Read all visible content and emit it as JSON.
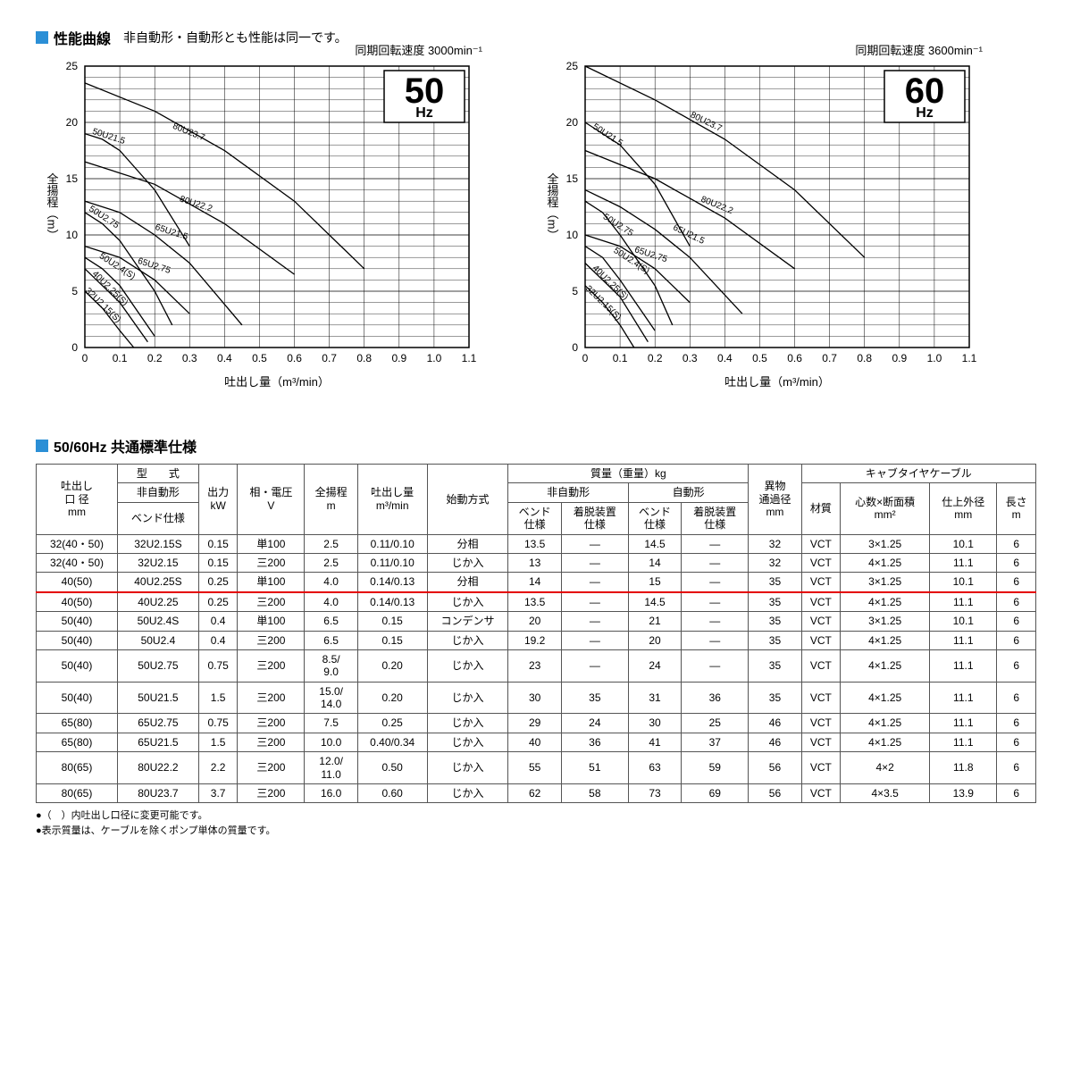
{
  "section1": {
    "title": "性能曲線",
    "subtitle": "非自動形・自動形とも性能は同一です。"
  },
  "charts": {
    "y_label": "全揚程（m）",
    "x_label": "吐出し量（m³/min）",
    "x_ticks": [
      "0",
      "0.1",
      "0.2",
      "0.3",
      "0.4",
      "0.5",
      "0.6",
      "0.7",
      "0.8",
      "0.9",
      "1.0",
      "1.1"
    ],
    "y_ticks": [
      "0",
      "5",
      "10",
      "15",
      "20",
      "25"
    ],
    "xlim": [
      0,
      1.1
    ],
    "ylim": [
      0,
      25
    ],
    "font_family": "sans-serif",
    "grid_color": "#000",
    "line_color": "#000",
    "left": {
      "top_label": "同期回転速度 3000min⁻¹",
      "badge_big": "50",
      "badge_small": "Hz",
      "curves": [
        {
          "label": "50U21.5",
          "pts": [
            [
              0,
              19
            ],
            [
              0.05,
              18.5
            ],
            [
              0.1,
              17.5
            ],
            [
              0.2,
              14
            ],
            [
              0.3,
              9
            ]
          ],
          "lx": 0.02,
          "ly": 19
        },
        {
          "label": "80U23.7",
          "pts": [
            [
              0,
              23.5
            ],
            [
              0.2,
              21
            ],
            [
              0.4,
              17.5
            ],
            [
              0.6,
              13
            ],
            [
              0.8,
              7
            ]
          ],
          "lx": 0.25,
          "ly": 19.5
        },
        {
          "label": "80U22.2",
          "pts": [
            [
              0,
              16.5
            ],
            [
              0.2,
              14.5
            ],
            [
              0.4,
              11
            ],
            [
              0.6,
              6.5
            ]
          ],
          "lx": 0.27,
          "ly": 13
        },
        {
          "label": "65U21.5",
          "pts": [
            [
              0,
              13
            ],
            [
              0.1,
              12
            ],
            [
              0.2,
              10
            ],
            [
              0.3,
              7.5
            ],
            [
              0.45,
              2
            ]
          ],
          "lx": 0.2,
          "ly": 10.5
        },
        {
          "label": "50U2.75",
          "pts": [
            [
              0,
              12
            ],
            [
              0.05,
              11
            ],
            [
              0.1,
              9.5
            ],
            [
              0.2,
              5
            ],
            [
              0.25,
              2
            ]
          ],
          "lx": 0.01,
          "ly": 12.2
        },
        {
          "label": "65U2.75",
          "pts": [
            [
              0,
              9
            ],
            [
              0.1,
              8
            ],
            [
              0.2,
              6
            ],
            [
              0.3,
              3
            ]
          ],
          "lx": 0.15,
          "ly": 7.5
        },
        {
          "label": "50U2.4(S)",
          "pts": [
            [
              0,
              8
            ],
            [
              0.05,
              7
            ],
            [
              0.1,
              5.5
            ],
            [
              0.2,
              1
            ]
          ],
          "lx": 0.04,
          "ly": 8
        },
        {
          "label": "40U2.25(S)",
          "pts": [
            [
              0,
              7
            ],
            [
              0.05,
              5.5
            ],
            [
              0.1,
              4
            ],
            [
              0.18,
              0.5
            ]
          ],
          "lx": 0.02,
          "ly": 6.5
        },
        {
          "label": "32U2.15(S)",
          "pts": [
            [
              0,
              5
            ],
            [
              0.05,
              3.5
            ],
            [
              0.1,
              1.5
            ],
            [
              0.14,
              0
            ]
          ],
          "lx": 0.0,
          "ly": 5
        }
      ]
    },
    "right": {
      "top_label": "同期回転速度 3600min⁻¹",
      "badge_big": "60",
      "badge_small": "Hz",
      "curves": [
        {
          "label": "50U21.5",
          "pts": [
            [
              0,
              20
            ],
            [
              0.1,
              18
            ],
            [
              0.2,
              14.5
            ],
            [
              0.3,
              9
            ]
          ],
          "lx": 0.02,
          "ly": 19.5
        },
        {
          "label": "80U23.7",
          "pts": [
            [
              0,
              25
            ],
            [
              0.2,
              22
            ],
            [
              0.4,
              18.5
            ],
            [
              0.6,
              14
            ],
            [
              0.8,
              8
            ]
          ],
          "lx": 0.3,
          "ly": 20.5
        },
        {
          "label": "80U22.2",
          "pts": [
            [
              0,
              17.5
            ],
            [
              0.2,
              15
            ],
            [
              0.4,
              11.5
            ],
            [
              0.6,
              7
            ]
          ],
          "lx": 0.33,
          "ly": 13
        },
        {
          "label": "65U21.5",
          "pts": [
            [
              0,
              14
            ],
            [
              0.1,
              12.5
            ],
            [
              0.2,
              10.5
            ],
            [
              0.3,
              8
            ],
            [
              0.45,
              3
            ]
          ],
          "lx": 0.25,
          "ly": 10.5
        },
        {
          "label": "50U2.75",
          "pts": [
            [
              0,
              13
            ],
            [
              0.05,
              12
            ],
            [
              0.1,
              10
            ],
            [
              0.2,
              5.5
            ],
            [
              0.25,
              2
            ]
          ],
          "lx": 0.05,
          "ly": 11.5
        },
        {
          "label": "65U2.75",
          "pts": [
            [
              0,
              10
            ],
            [
              0.1,
              9
            ],
            [
              0.2,
              7
            ],
            [
              0.3,
              4
            ]
          ],
          "lx": 0.14,
          "ly": 8.5
        },
        {
          "label": "50U2.4(S)",
          "pts": [
            [
              0,
              9
            ],
            [
              0.05,
              8
            ],
            [
              0.1,
              6
            ],
            [
              0.2,
              1.5
            ]
          ],
          "lx": 0.08,
          "ly": 8.5
        },
        {
          "label": "40U2.25(S)",
          "pts": [
            [
              0,
              7.5
            ],
            [
              0.05,
              6
            ],
            [
              0.1,
              4.5
            ],
            [
              0.18,
              0.5
            ]
          ],
          "lx": 0.02,
          "ly": 7
        },
        {
          "label": "32U2.15(S)",
          "pts": [
            [
              0,
              5.5
            ],
            [
              0.05,
              4
            ],
            [
              0.1,
              2
            ],
            [
              0.14,
              0
            ]
          ],
          "lx": 0.0,
          "ly": 5.2
        }
      ]
    }
  },
  "section2": {
    "title": "50/60Hz 共通標準仕様"
  },
  "table": {
    "headers": {
      "diameter": "吐出し\n口 径\nmm",
      "model": "型　　式",
      "model_nonauto": "非自動形",
      "model_bend": "ベンド仕様",
      "power": "出力\nkW",
      "phase": "相・電圧\nV",
      "head": "全揚程\nm",
      "discharge": "吐出し量\nm³/min",
      "start": "始動方式",
      "mass": "質量（重量）kg",
      "mass_nonauto": "非自動形",
      "mass_auto": "自動形",
      "mass_bend": "ベンド\n仕様",
      "mass_lift": "着脱装置\n仕様",
      "foreign": "異物\n通過径\nmm",
      "cable": "キャブタイヤケーブル",
      "cable_mat": "材質",
      "cable_core": "心数×断面積\nmm²",
      "cable_od": "仕上外径\nmm",
      "cable_len": "長さ\nm"
    },
    "rows": [
      {
        "d": "32(40・50)",
        "m": "32U2.15S",
        "kw": "0.15",
        "pv": "単100",
        "h": "2.5",
        "q": "0.11/0.10",
        "st": "分相",
        "na1": "13.5",
        "na2": "—",
        "a1": "14.5",
        "a2": "—",
        "f": "32",
        "cm": "VCT",
        "cc": "3×1.25",
        "co": "10.1",
        "cl": "6",
        "red": false
      },
      {
        "d": "32(40・50)",
        "m": "32U2.15",
        "kw": "0.15",
        "pv": "三200",
        "h": "2.5",
        "q": "0.11/0.10",
        "st": "じか入",
        "na1": "13",
        "na2": "—",
        "a1": "14",
        "a2": "—",
        "f": "32",
        "cm": "VCT",
        "cc": "4×1.25",
        "co": "11.1",
        "cl": "6",
        "red": false
      },
      {
        "d": "40(50)",
        "m": "40U2.25S",
        "kw": "0.25",
        "pv": "単100",
        "h": "4.0",
        "q": "0.14/0.13",
        "st": "分相",
        "na1": "14",
        "na2": "—",
        "a1": "15",
        "a2": "—",
        "f": "35",
        "cm": "VCT",
        "cc": "3×1.25",
        "co": "10.1",
        "cl": "6",
        "red": true
      },
      {
        "d": "40(50)",
        "m": "40U2.25",
        "kw": "0.25",
        "pv": "三200",
        "h": "4.0",
        "q": "0.14/0.13",
        "st": "じか入",
        "na1": "13.5",
        "na2": "—",
        "a1": "14.5",
        "a2": "—",
        "f": "35",
        "cm": "VCT",
        "cc": "4×1.25",
        "co": "11.1",
        "cl": "6",
        "red": false
      },
      {
        "d": "50(40)",
        "m": "50U2.4S",
        "kw": "0.4",
        "pv": "単100",
        "h": "6.5",
        "q": "0.15",
        "st": "コンデンサ",
        "na1": "20",
        "na2": "—",
        "a1": "21",
        "a2": "—",
        "f": "35",
        "cm": "VCT",
        "cc": "3×1.25",
        "co": "10.1",
        "cl": "6",
        "red": false
      },
      {
        "d": "50(40)",
        "m": "50U2.4",
        "kw": "0.4",
        "pv": "三200",
        "h": "6.5",
        "q": "0.15",
        "st": "じか入",
        "na1": "19.2",
        "na2": "—",
        "a1": "20",
        "a2": "—",
        "f": "35",
        "cm": "VCT",
        "cc": "4×1.25",
        "co": "11.1",
        "cl": "6",
        "red": false
      },
      {
        "d": "50(40)",
        "m": "50U2.75",
        "kw": "0.75",
        "pv": "三200",
        "h": "8.5/\n9.0",
        "q": "0.20",
        "st": "じか入",
        "na1": "23",
        "na2": "—",
        "a1": "24",
        "a2": "—",
        "f": "35",
        "cm": "VCT",
        "cc": "4×1.25",
        "co": "11.1",
        "cl": "6",
        "red": false
      },
      {
        "d": "50(40)",
        "m": "50U21.5",
        "kw": "1.5",
        "pv": "三200",
        "h": "15.0/\n14.0",
        "q": "0.20",
        "st": "じか入",
        "na1": "30",
        "na2": "35",
        "a1": "31",
        "a2": "36",
        "f": "35",
        "cm": "VCT",
        "cc": "4×1.25",
        "co": "11.1",
        "cl": "6",
        "red": false
      },
      {
        "d": "65(80)",
        "m": "65U2.75",
        "kw": "0.75",
        "pv": "三200",
        "h": "7.5",
        "q": "0.25",
        "st": "じか入",
        "na1": "29",
        "na2": "24",
        "a1": "30",
        "a2": "25",
        "f": "46",
        "cm": "VCT",
        "cc": "4×1.25",
        "co": "11.1",
        "cl": "6",
        "red": false
      },
      {
        "d": "65(80)",
        "m": "65U21.5",
        "kw": "1.5",
        "pv": "三200",
        "h": "10.0",
        "q": "0.40/0.34",
        "st": "じか入",
        "na1": "40",
        "na2": "36",
        "a1": "41",
        "a2": "37",
        "f": "46",
        "cm": "VCT",
        "cc": "4×1.25",
        "co": "11.1",
        "cl": "6",
        "red": false
      },
      {
        "d": "80(65)",
        "m": "80U22.2",
        "kw": "2.2",
        "pv": "三200",
        "h": "12.0/\n11.0",
        "q": "0.50",
        "st": "じか入",
        "na1": "55",
        "na2": "51",
        "a1": "63",
        "a2": "59",
        "f": "56",
        "cm": "VCT",
        "cc": "4×2",
        "co": "11.8",
        "cl": "6",
        "red": false
      },
      {
        "d": "80(65)",
        "m": "80U23.7",
        "kw": "3.7",
        "pv": "三200",
        "h": "16.0",
        "q": "0.60",
        "st": "じか入",
        "na1": "62",
        "na2": "58",
        "a1": "73",
        "a2": "69",
        "f": "56",
        "cm": "VCT",
        "cc": "4×3.5",
        "co": "13.9",
        "cl": "6",
        "red": false
      }
    ]
  },
  "notes": [
    "●（　）内吐出し口径に変更可能です。",
    "●表示質量は、ケーブルを除くポンプ単体の質量です。"
  ]
}
